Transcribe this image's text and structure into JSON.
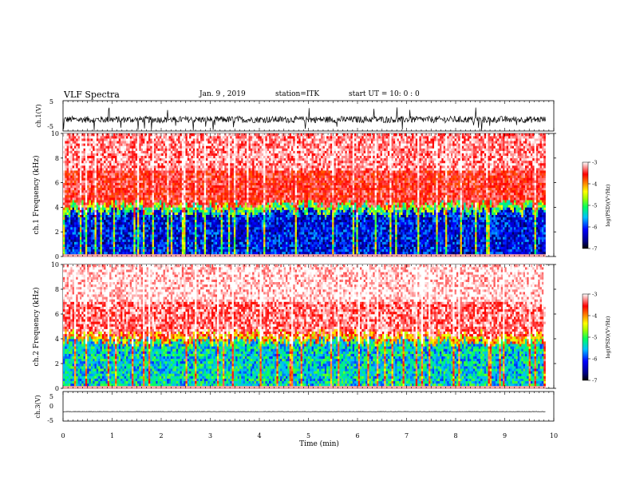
{
  "header": {
    "title": "VLF Spectra",
    "date_label": "Jan. 9 , 2019",
    "station_label": "station=ITK",
    "start_label": "start  UT = 10: 0 : 0"
  },
  "chart_data": [
    {
      "type": "line",
      "panel": "ch.1 waveform",
      "ylabel": "ch.1(V)",
      "ylim": [
        -5,
        5
      ],
      "yticks": [
        "5",
        "-5"
      ],
      "xlim": [
        0,
        10
      ],
      "trace": {
        "baseline": -1.2,
        "spread": 1.1,
        "spikes_to": [
          -5,
          3
        ],
        "end_min": 9.83
      }
    },
    {
      "type": "heatmap",
      "panel": "ch.1 spectrogram",
      "ylabel": "ch.1 Frequency (kHz)",
      "ylim": [
        0,
        10
      ],
      "yticks": [
        "0",
        "2",
        "4",
        "6",
        "8",
        "10"
      ],
      "xlim": [
        0,
        10
      ],
      "data_end_min": 9.83,
      "levels": {
        "noise_floor_kHz": 4.2,
        "floor_value": -6.2,
        "upper_value": -3.5
      },
      "colorbar": {
        "label": "log(PSD)(V²/Hz)",
        "range": [
          -7,
          -3
        ],
        "ticks": [
          "-3",
          "-4",
          "-5",
          "-6",
          "-7"
        ]
      }
    },
    {
      "type": "heatmap",
      "panel": "ch.2 spectrogram",
      "ylabel": "ch.2 Frequency (kHz)",
      "ylim": [
        0,
        10
      ],
      "yticks": [
        "0",
        "2",
        "4",
        "6",
        "8",
        "10"
      ],
      "xlim": [
        0,
        10
      ],
      "data_end_min": 9.83,
      "levels": {
        "noise_floor_kHz": 4.4,
        "floor_value": -5.4,
        "upper_value": -3.3
      },
      "colorbar": {
        "label": "log(PSD)(V²/Hz)",
        "range": [
          -7,
          -3
        ],
        "ticks": [
          "-3",
          "-4",
          "-5",
          "-6",
          "-7"
        ]
      }
    },
    {
      "type": "line",
      "panel": "ch.3 waveform",
      "ylabel": "ch.3(V)",
      "ylim": [
        -5,
        5
      ],
      "yticks": [
        "5",
        "0",
        "-5"
      ],
      "xlim": [
        0,
        10
      ],
      "xlabel": "Time  (min)",
      "xticks": [
        "0",
        "1",
        "2",
        "3",
        "4",
        "5",
        "6",
        "7",
        "8",
        "9",
        "10"
      ],
      "trace": {
        "baseline": -1.8,
        "spread": 0.05,
        "end_min": 9.83
      }
    }
  ]
}
